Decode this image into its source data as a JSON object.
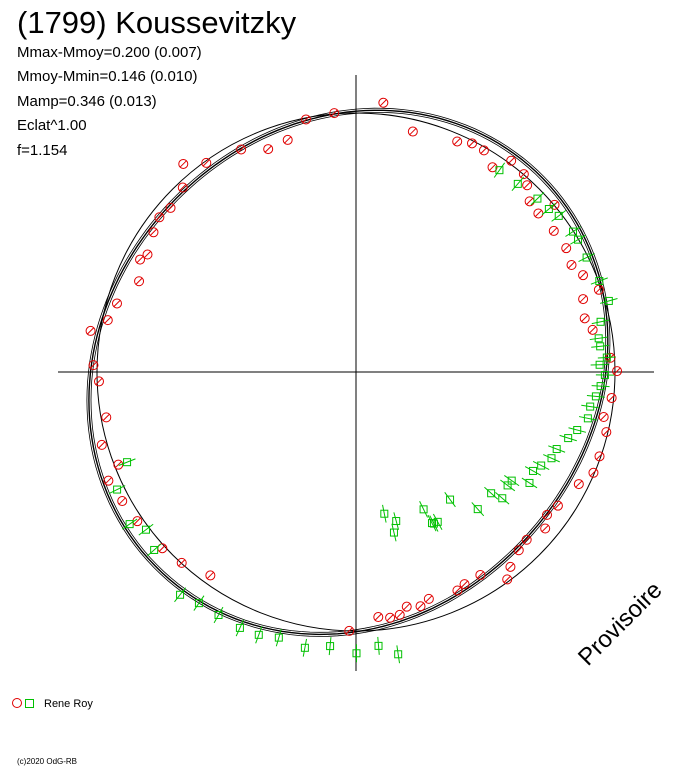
{
  "header": {
    "title": "(1799) Koussevitzky",
    "stats": [
      "Mmax-Mmoy=0.200 (0.007)",
      "Mmoy-Mmin=0.146 (0.010)",
      "Mamp=0.346 (0.013)",
      "Eclat^1.00",
      "f=1.154"
    ]
  },
  "legend": {
    "label": "Rene Roy"
  },
  "credit": "(c)2020 OdG-RB",
  "watermark": "Provisoire",
  "colors": {
    "axes": "#000000",
    "circle_series": "#e00000",
    "square_series": "#00c000",
    "fit_curve": "#000000"
  },
  "chart_data": {
    "type": "scatter",
    "subtype": "polar lightcurve",
    "observer": "Rene Roy",
    "radius_reference": 1.0,
    "series": [
      {
        "name": "Rene Roy",
        "marker": "circle",
        "points": [
          [
            1.045,
            84.2
          ],
          [
            0.954,
            76.7
          ],
          [
            0.972,
            66.3
          ],
          [
            0.99,
            63.1
          ],
          [
            0.988,
            60.0
          ],
          [
            0.95,
            56.3
          ],
          [
            1.012,
            53.7
          ],
          [
            1.002,
            49.7
          ],
          [
            0.978,
            47.5
          ],
          [
            0.94,
            44.5
          ],
          [
            1.002,
            40.1
          ],
          [
            0.933,
            41.0
          ],
          [
            0.938,
            35.5
          ],
          [
            0.942,
            30.5
          ],
          [
            0.929,
            26.4
          ],
          [
            0.953,
            23.1
          ],
          [
            0.99,
            18.7
          ],
          [
            0.921,
            17.8
          ],
          [
            0.907,
            13.2
          ],
          [
            0.928,
            10.1
          ],
          [
            0.984,
            3.2
          ],
          [
            1.008,
            0.2
          ],
          [
            0.992,
            -5.8
          ],
          [
            0.972,
            -10.3
          ],
          [
            0.994,
            -13.5
          ],
          [
            0.995,
            -19.1
          ],
          [
            0.996,
            -23.0
          ],
          [
            0.963,
            -26.7
          ],
          [
            0.935,
            -33.5
          ],
          [
            0.921,
            -36.8
          ],
          [
            0.948,
            -39.6
          ],
          [
            0.924,
            -44.5
          ],
          [
            0.932,
            -47.6
          ],
          [
            0.96,
            -51.6
          ],
          [
            0.991,
            -53.9
          ],
          [
            0.919,
            -58.5
          ],
          [
            0.92,
            -62.9
          ],
          [
            0.93,
            -65.1
          ],
          [
            0.92,
            -72.2
          ],
          [
            0.938,
            -74.6
          ],
          [
            0.927,
            -77.8
          ],
          [
            0.953,
            -79.8
          ],
          [
            0.958,
            -82.1
          ],
          [
            0.95,
            -84.8
          ],
          [
            1.0,
            -91.5
          ],
          [
            1.003,
            94.8
          ],
          [
            0.994,
            101.2
          ],
          [
            0.934,
            106.4
          ],
          [
            0.925,
            111.5
          ],
          [
            0.967,
            117.3
          ],
          [
            0.993,
            125.6
          ],
          [
            1.044,
            129.7
          ],
          [
            0.977,
            133.2
          ],
          [
            0.956,
            138.5
          ],
          [
            0.966,
            141.8
          ],
          [
            0.95,
            145.4
          ],
          [
            0.924,
            150.6
          ],
          [
            0.94,
            152.5
          ],
          [
            0.908,
            157.3
          ],
          [
            0.96,
            164.0
          ],
          [
            0.979,
            168.2
          ],
          [
            1.037,
            171.2
          ],
          [
            1.014,
            178.5
          ],
          [
            0.993,
            -177.9
          ],
          [
            0.98,
            -169.7
          ],
          [
            1.021,
            -164.0
          ],
          [
            0.985,
            -158.7
          ],
          [
            1.044,
            -156.3
          ],
          [
            1.031,
            -151.1
          ],
          [
            1.022,
            -145.7
          ],
          [
            1.011,
            -137.7
          ],
          [
            0.998,
            -132.4
          ],
          [
            0.966,
            -125.6
          ]
        ]
      },
      {
        "name": "Rene Roy",
        "marker": "square",
        "points": [
          [
            0.956,
            54.6
          ],
          [
            0.958,
            49.3
          ],
          [
            0.969,
            43.7
          ],
          [
            0.975,
            40.2
          ],
          [
            0.988,
            37.6
          ],
          [
            0.998,
            32.9
          ],
          [
            0.998,
            30.8
          ],
          [
            0.994,
            26.4
          ],
          [
            1.003,
            20.5
          ],
          [
            1.014,
            15.7
          ],
          [
            0.964,
            11.6
          ],
          [
            0.946,
            7.9
          ],
          [
            0.948,
            6.0
          ],
          [
            0.97,
            3.3
          ],
          [
            0.941,
            1.7
          ],
          [
            0.961,
            -0.7
          ],
          [
            0.946,
            -3.3
          ],
          [
            0.931,
            -5.8
          ],
          [
            0.914,
            -8.4
          ],
          [
            0.913,
            -11.3
          ],
          [
            0.883,
            -14.7
          ],
          [
            0.858,
            -17.3
          ],
          [
            0.83,
            -21.0
          ],
          [
            0.825,
            -23.8
          ],
          [
            0.801,
            -26.8
          ],
          [
            0.783,
            -29.2
          ],
          [
            0.795,
            -32.6
          ],
          [
            0.733,
            -34.9
          ],
          [
            0.731,
            -36.8
          ],
          [
            0.746,
            -40.8
          ],
          [
            0.701,
            -41.9
          ],
          [
            0.708,
            -48.4
          ],
          [
            0.612,
            -53.6
          ],
          [
            0.659,
            -61.4
          ],
          [
            0.653,
            -63.3
          ],
          [
            0.658,
            -62.8
          ],
          [
            0.591,
            -63.8
          ],
          [
            0.558,
            -78.7
          ],
          [
            0.596,
            -74.9
          ],
          [
            0.637,
            -76.7
          ],
          [
            1.102,
            -81.5
          ],
          [
            1.061,
            -85.3
          ],
          [
            1.086,
            -89.9
          ],
          [
            1.063,
            -95.4
          ],
          [
            1.083,
            -100.5
          ],
          [
            1.068,
            -106.2
          ],
          [
            1.082,
            -110.3
          ],
          [
            1.085,
            -114.4
          ],
          [
            1.078,
            -119.5
          ],
          [
            1.079,
            -124.2
          ],
          [
            1.096,
            -128.3
          ],
          [
            1.039,
            -138.6
          ],
          [
            1.014,
            -143.1
          ],
          [
            1.053,
            -146.1
          ],
          [
            1.028,
            -153.8
          ],
          [
            0.95,
            -158.5
          ]
        ]
      }
    ],
    "reference_circle": {
      "r": 1.0
    },
    "fit_curve": {
      "model": "Fourier",
      "period_fraction": 1.154,
      "curves": 3
    },
    "axes": {
      "grid": false,
      "crosshair": true
    }
  }
}
